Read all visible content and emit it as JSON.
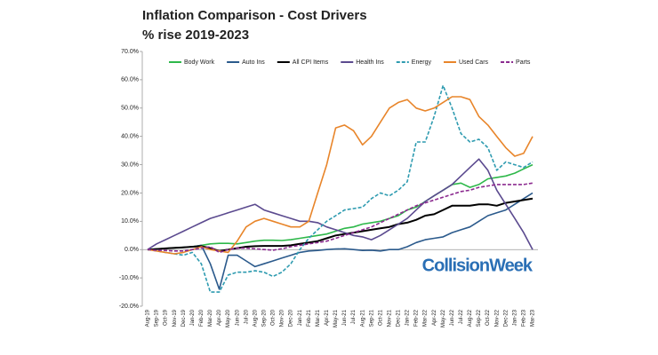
{
  "chart_data": {
    "type": "line",
    "title": "Inflation Comparison - Cost Drivers",
    "subtitle": "% rise  2019-2023",
    "watermark": "CollisionWeek",
    "categories": [
      "Aug-19",
      "Sep-19",
      "Oct-19",
      "Nov-19",
      "Dec-19",
      "Jan-20",
      "Feb-20",
      "Mar-20",
      "Apr-20",
      "May-20",
      "Jun-20",
      "Jul-20",
      "Aug-20",
      "Sep-20",
      "Oct-20",
      "Nov-20",
      "Dec-20",
      "Jan-21",
      "Feb-21",
      "Mar-21",
      "Apr-21",
      "May-21",
      "Jun-21",
      "Jul-21",
      "Aug-21",
      "Sep-21",
      "Oct-21",
      "Nov-21",
      "Dec-21",
      "Jan-22",
      "Feb-22",
      "Mar-22",
      "Apr-22",
      "May-22",
      "Jun-22",
      "Jul-22",
      "Aug-22",
      "Sep-22",
      "Oct-22",
      "Nov-22",
      "Dec-22",
      "Jan-23",
      "Feb-23",
      "Mar-23"
    ],
    "ylim": [
      -20,
      70
    ],
    "yticks": [
      {
        "value": -20,
        "label": "-20.0%"
      },
      {
        "value": -10,
        "label": "-10.0%"
      },
      {
        "value": 0,
        "label": "0.0%"
      },
      {
        "value": 10,
        "label": "10.0%"
      },
      {
        "value": 20,
        "label": "20.0%"
      },
      {
        "value": 30,
        "label": "30.0%"
      },
      {
        "value": 40,
        "label": "40.0%"
      },
      {
        "value": 50,
        "label": "50.0%"
      },
      {
        "value": 60,
        "label": "60.0%"
      },
      {
        "value": 70,
        "label": "70.0%"
      }
    ],
    "grid": false,
    "legend": "top",
    "series": [
      {
        "name": "Body Work",
        "color": "#2eb84a",
        "dashed": false,
        "values": [
          0,
          0.2,
          0.4,
          0.6,
          0.8,
          1,
          1.5,
          2,
          2.2,
          2.2,
          2,
          2.5,
          3,
          3.3,
          3.3,
          3.2,
          3.5,
          4,
          4.5,
          5,
          5.5,
          6.5,
          7.5,
          8,
          9,
          9.5,
          10,
          11,
          12,
          14,
          15,
          17,
          19,
          21,
          23,
          23.5,
          22,
          23,
          25,
          25.5,
          26,
          27,
          28.5,
          30
        ]
      },
      {
        "name": "Auto Ins",
        "color": "#2b5a8c",
        "dashed": false,
        "values": [
          0,
          0.2,
          0.4,
          0.6,
          0.8,
          1,
          1.5,
          -5,
          -14,
          -2,
          -2,
          -4,
          -6,
          -5,
          -4,
          -3,
          -2,
          -1,
          -0.5,
          -0.3,
          0,
          0.2,
          0.3,
          0,
          -0.3,
          -0.2,
          -0.5,
          0,
          0,
          1,
          2.5,
          3.5,
          4,
          4.5,
          6,
          7,
          8,
          10,
          12,
          13,
          14,
          16,
          18,
          20
        ]
      },
      {
        "name": "All CPI Items",
        "color": "#000000",
        "dashed": false,
        "values": [
          0,
          0.2,
          0.4,
          0.6,
          0.8,
          1,
          1.2,
          0.5,
          -0.5,
          0,
          0.5,
          1,
          1.2,
          1.3,
          1.3,
          1.3,
          1.5,
          2,
          2.5,
          3,
          4,
          5,
          5.5,
          6,
          6.5,
          7,
          7.5,
          8,
          9,
          9.5,
          10.5,
          12,
          12.5,
          14,
          15.5,
          15.5,
          15.5,
          16,
          16,
          15.5,
          16.5,
          17,
          17.5,
          18
        ]
      },
      {
        "name": "Health Ins",
        "color": "#5b4a8f",
        "dashed": false,
        "values": [
          0,
          2,
          3.5,
          5,
          6.5,
          8,
          9.5,
          11,
          12,
          13,
          14,
          15,
          16,
          14,
          13,
          12,
          11,
          10,
          10,
          9.5,
          8,
          7,
          6,
          5,
          4.5,
          3.5,
          5,
          7,
          9,
          11,
          14,
          17,
          19,
          21,
          23,
          26,
          29,
          32,
          28,
          21,
          16,
          11,
          6,
          0
        ]
      },
      {
        "name": "Energy",
        "color": "#2e9bb0",
        "dashed": true,
        "values": [
          0,
          -0.5,
          -1,
          -1.5,
          -2,
          -1,
          -5,
          -15,
          -15,
          -9,
          -8,
          -8,
          -7.5,
          -8,
          -9.5,
          -8,
          -5,
          0,
          4,
          7,
          10,
          12,
          14,
          14.5,
          15,
          18,
          20,
          19,
          21,
          24,
          38,
          38,
          47,
          58,
          50,
          41,
          38,
          39,
          36,
          28,
          31,
          30,
          29,
          31
        ]
      },
      {
        "name": "Used Cars",
        "color": "#e8852a",
        "dashed": false,
        "values": [
          0,
          -0.5,
          -1,
          -1.5,
          -1,
          0,
          1,
          0,
          -0.5,
          -1,
          3,
          8,
          10,
          11,
          10,
          9,
          8,
          8,
          10,
          20,
          30,
          43,
          44,
          42,
          37,
          40,
          45,
          50,
          52,
          53,
          50,
          49,
          50,
          52,
          54,
          54,
          53,
          47,
          44,
          40,
          36,
          33,
          34,
          40
        ]
      },
      {
        "name": "Parts",
        "color": "#8b2a8f",
        "dashed": true,
        "values": [
          0,
          -0.2,
          -0.3,
          -0.5,
          -0.5,
          0,
          0.5,
          1,
          -1,
          0,
          0.5,
          0.5,
          0.3,
          0,
          -0.2,
          0.3,
          1,
          1.5,
          2,
          2.5,
          3,
          4,
          5,
          6,
          7,
          8,
          9.5,
          11,
          12.5,
          14,
          15.5,
          16.5,
          17.5,
          18.5,
          19.5,
          20.5,
          21,
          22,
          22.5,
          23,
          23,
          23,
          23,
          23.5
        ]
      }
    ]
  }
}
